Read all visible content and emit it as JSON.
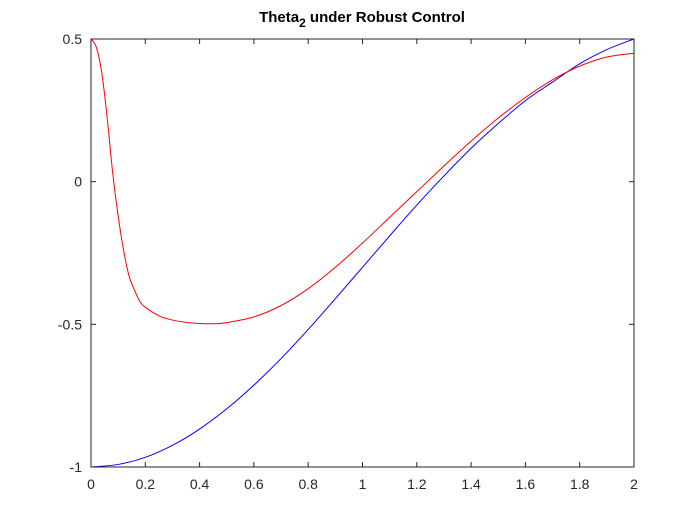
{
  "chart_data": {
    "type": "line",
    "title": "Theta",
    "title_subscript": "2",
    "title_rest": " under Robust Control",
    "xlabel": "",
    "ylabel": "",
    "xlim": [
      0,
      2
    ],
    "ylim": [
      -1,
      0.5
    ],
    "grid": false,
    "legend": "none",
    "x_ticks": [
      0,
      0.2,
      0.4,
      0.6,
      0.8,
      1,
      1.2,
      1.4,
      1.6,
      1.8,
      2
    ],
    "x_tick_labels": [
      "0",
      "0.2",
      "0.4",
      "0.6",
      "0.8",
      "1",
      "1.2",
      "1.4",
      "1.6",
      "1.8",
      "2"
    ],
    "y_ticks": [
      -1,
      -0.5,
      0,
      0.5
    ],
    "y_tick_labels": [
      "-1",
      "-0.5",
      "0",
      "0.5"
    ],
    "series": [
      {
        "color": "#0000ff",
        "x": [
          0,
          0.1,
          0.2,
          0.3,
          0.4,
          0.5,
          0.6,
          0.7,
          0.8,
          0.9,
          1.0,
          1.1,
          1.2,
          1.3,
          1.4,
          1.5,
          1.6,
          1.7,
          1.8,
          1.9,
          2.0
        ],
        "y": [
          -1.0,
          -0.991,
          -0.966,
          -0.924,
          -0.867,
          -0.796,
          -0.713,
          -0.62,
          -0.518,
          -0.41,
          -0.3,
          -0.19,
          -0.082,
          0.02,
          0.117,
          0.204,
          0.284,
          0.349,
          0.413,
          0.463,
          0.5
        ]
      },
      {
        "color": "#ff0000",
        "x": [
          0,
          0.02,
          0.04,
          0.06,
          0.08,
          0.1,
          0.12,
          0.14,
          0.16,
          0.18,
          0.2,
          0.25,
          0.3,
          0.35,
          0.4,
          0.45,
          0.5,
          0.6,
          0.7,
          0.8,
          0.9,
          1.0,
          1.1,
          1.2,
          1.3,
          1.4,
          1.5,
          1.6,
          1.7,
          1.8,
          1.9,
          2.0
        ],
        "y": [
          0.5,
          0.47,
          0.38,
          0.22,
          0.03,
          -0.12,
          -0.24,
          -0.33,
          -0.38,
          -0.42,
          -0.44,
          -0.47,
          -0.485,
          -0.493,
          -0.497,
          -0.498,
          -0.494,
          -0.474,
          -0.434,
          -0.375,
          -0.3,
          -0.215,
          -0.125,
          -0.035,
          0.055,
          0.142,
          0.223,
          0.295,
          0.357,
          0.405,
          0.437,
          0.45
        ]
      }
    ]
  }
}
